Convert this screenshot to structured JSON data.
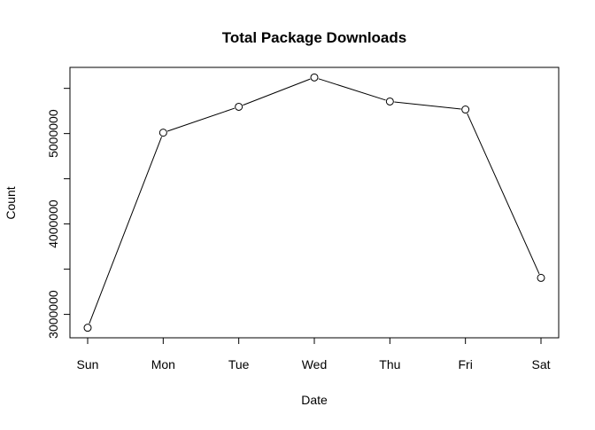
{
  "chart_data": {
    "type": "line",
    "title": "Total Package Downloads",
    "xlabel": "Date",
    "ylabel": "Count",
    "categories": [
      "Sun",
      "Mon",
      "Tue",
      "Wed",
      "Thu",
      "Fri",
      "Sat"
    ],
    "values": [
      2852000,
      5010000,
      5296000,
      5621000,
      5355000,
      5266000,
      3404000
    ],
    "ylim": [
      2741000,
      5732000
    ],
    "y_ticks": [
      3000000,
      3500000,
      4000000,
      4500000,
      5000000,
      5500000
    ],
    "y_tick_labels": [
      "3000000",
      "",
      "4000000",
      "",
      "5000000",
      ""
    ],
    "markers": "open-circle",
    "grid": false,
    "line_color": "#000000"
  }
}
